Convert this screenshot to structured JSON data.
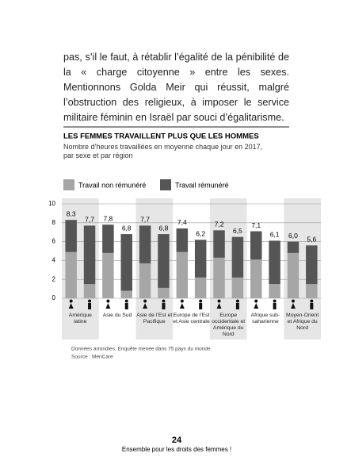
{
  "paragraph": "pas, s’il le faut, à rétablir l’égalité de la pénibilité de la « charge citoyenne » entre les sexes. Mentionnons Golda Meir qui réussit, malgré l’obstruction des religieux, à imposer le service militaire féminin en Israël par souci d’égalitarisme.",
  "chart_data": {
    "type": "stacked-bar",
    "title": "LES FEMMES TRAVAILLENT PLUS QUE LES HOMMES",
    "subtitle": "Nombre d’heures travaillées en moyenne chaque jour en 2017, par sexe et par région",
    "categories": [
      "Amérique latine",
      null,
      "Asie du Sud",
      null,
      "Asie de l’Est et Pacifique",
      null,
      "Europe de l’Est et Asie centrale",
      null,
      "Europe occidentale et Amérique du Nord",
      null,
      "Afrique sub-saharienne",
      null,
      "Moyen-Orient et Afrique du Nord",
      null
    ],
    "series": [
      {
        "name": "Travail non rémunéré",
        "color": "#a6a6a6",
        "values": [
          4.9,
          1.5,
          4.8,
          0.8,
          3.7,
          1.1,
          4.9,
          2.2,
          4.3,
          2.2,
          4.1,
          1.5,
          4.8,
          1.5
        ]
      },
      {
        "name": "Travail rémunéré",
        "color": "#555555",
        "values": [
          3.4,
          6.2,
          3.0,
          6.0,
          4.0,
          5.7,
          2.5,
          4.0,
          2.9,
          4.3,
          3.0,
          4.6,
          1.2,
          4.1
        ]
      }
    ],
    "totals": [
      8.3,
      7.7,
      7.8,
      6.8,
      7.7,
      6.8,
      7.4,
      6.2,
      7.2,
      6.5,
      7.1,
      6.1,
      6.0,
      5.6
    ],
    "total_labels": [
      "8,3",
      "7,7",
      "7,8",
      "6,8",
      "7,7",
      "6,8",
      "7,4",
      "6,2",
      "7,2",
      "6,5",
      "7,1",
      "6,1",
      "6,0",
      "5,6"
    ],
    "ylim": [
      0,
      10
    ],
    "yticks": [
      0,
      2,
      4,
      6,
      8,
      10
    ],
    "grid": true,
    "source": [
      "Données arrondies. Enquête menée dans 75 pays du monde.",
      "Source : MenCare"
    ]
  },
  "footer": {
    "page_number": "24",
    "title": "Ensemble pour les droits des femmes !"
  }
}
